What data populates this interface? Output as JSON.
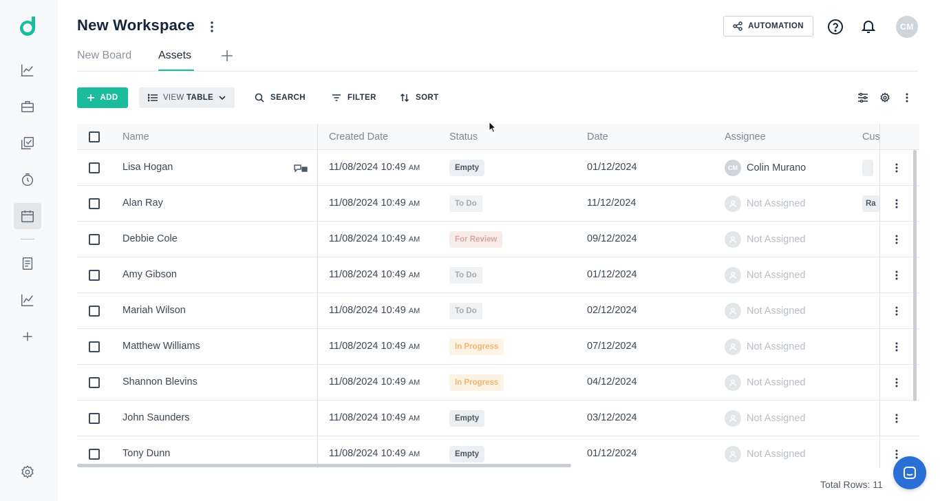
{
  "workspace": {
    "title": "New Workspace"
  },
  "tabs": [
    {
      "label": "New Board"
    },
    {
      "label": "Assets"
    }
  ],
  "header": {
    "automation_label": "AUTOMATION",
    "avatar_initials": "CM"
  },
  "toolbar": {
    "add_label": "ADD",
    "view_prefix": "VIEW",
    "view_value": "TABLE",
    "search_label": "SEARCH",
    "filter_label": "FILTER",
    "sort_label": "SORT"
  },
  "table": {
    "columns": [
      "Name",
      "Created Date",
      "Status",
      "Date",
      "Assignee",
      "Cus"
    ],
    "rows": [
      {
        "name": "Lisa Hogan",
        "created_date": "11/08/2024 10:49",
        "created_ampm": "AM",
        "status": "Empty",
        "date": "01/12/2024",
        "assignee": "Colin Murano",
        "assignee_initials": "CM",
        "custom": ""
      },
      {
        "name": "Alan Ray",
        "created_date": "11/08/2024 10:49",
        "created_ampm": "AM",
        "status": "To Do",
        "date": "11/12/2024",
        "assignee": "Not Assigned",
        "custom": "Ra"
      },
      {
        "name": "Debbie Cole",
        "created_date": "11/08/2024 10:49",
        "created_ampm": "AM",
        "status": "For Review",
        "date": "09/12/2024",
        "assignee": "Not Assigned",
        "custom": ""
      },
      {
        "name": "Amy Gibson",
        "created_date": "11/08/2024 10:49",
        "created_ampm": "AM",
        "status": "To Do",
        "date": "01/12/2024",
        "assignee": "Not Assigned",
        "custom": ""
      },
      {
        "name": "Mariah Wilson",
        "created_date": "11/08/2024 10:49",
        "created_ampm": "AM",
        "status": "To Do",
        "date": "02/12/2024",
        "assignee": "Not Assigned",
        "custom": ""
      },
      {
        "name": "Matthew Williams",
        "created_date": "11/08/2024 10:49",
        "created_ampm": "AM",
        "status": "In Progress",
        "date": "07/12/2024",
        "assignee": "Not Assigned",
        "custom": ""
      },
      {
        "name": "Shannon Blevins",
        "created_date": "11/08/2024 10:49",
        "created_ampm": "AM",
        "status": "In Progress",
        "date": "04/12/2024",
        "assignee": "Not Assigned",
        "custom": ""
      },
      {
        "name": "John Saunders",
        "created_date": "11/08/2024 10:49",
        "created_ampm": "AM",
        "status": "Empty",
        "date": "03/12/2024",
        "assignee": "Not Assigned",
        "custom": ""
      },
      {
        "name": "Tony Dunn",
        "created_date": "11/08/2024 10:49",
        "created_ampm": "AM",
        "status": "Empty",
        "date": "01/12/2024",
        "assignee": "Not Assigned",
        "custom": ""
      }
    ]
  },
  "footer": {
    "total_rows": "Total Rows: 11"
  },
  "colors": {
    "accent": "#1bbc9b",
    "chat": "#2a6fd6"
  },
  "icons": [
    "logo-icon",
    "analytics-icon",
    "briefcase-icon",
    "tasks-icon",
    "timer-icon",
    "calendar-icon",
    "document-icon",
    "chart-icon",
    "plus-icon",
    "settings-icon",
    "automation-icon",
    "help-icon",
    "bell-icon",
    "search-icon",
    "filter-icon",
    "sort-icon",
    "column-settings-icon",
    "gear-icon",
    "more-icon",
    "comment-icon",
    "chat-icon"
  ]
}
